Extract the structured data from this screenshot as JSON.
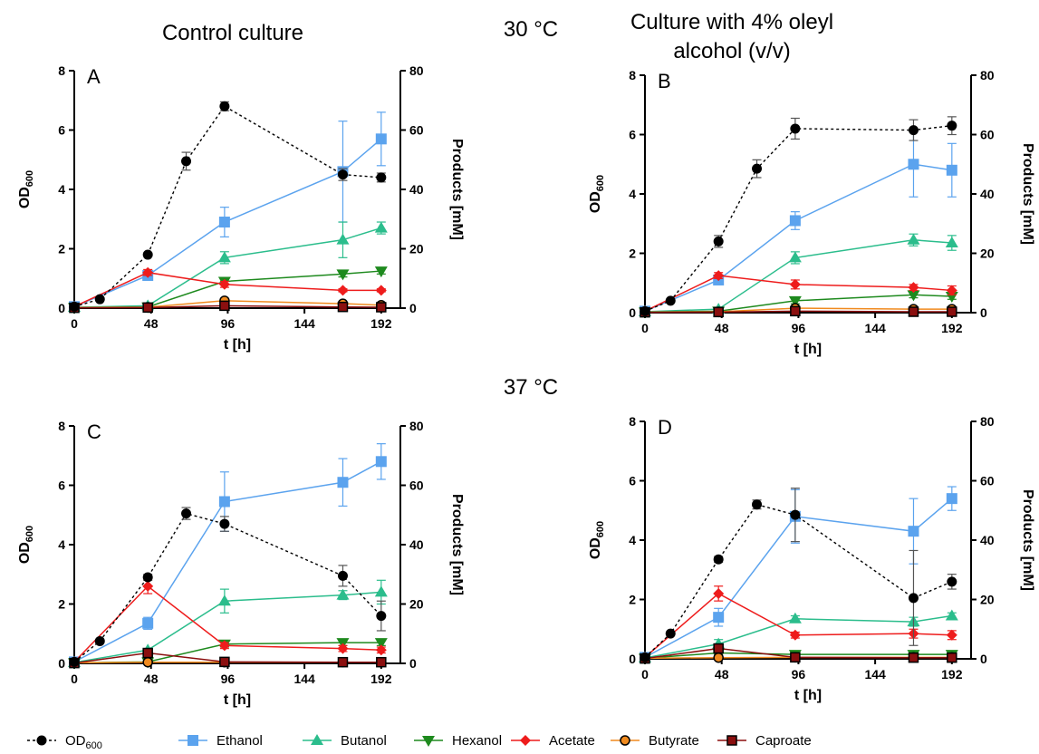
{
  "figure": {
    "col_left_title": "Control culture",
    "col_right_title_line1": "Culture with 4% oleyl",
    "col_right_title_line2": "alcohol (v/v)",
    "temp_top": "30 °C",
    "temp_bottom": "37 °C",
    "xlabel": "t [h]",
    "ylabel_left": "OD",
    "ylabel_left_sub": "600",
    "ylabel_right": "Products [mM]"
  },
  "legend": [
    {
      "label": "OD",
      "sub": "600",
      "color": "#000000",
      "marker": "circle",
      "dash": true
    },
    {
      "label": "Ethanol",
      "color": "#5ba3ee",
      "marker": "square"
    },
    {
      "label": "Butanol",
      "color": "#2bbd8c",
      "marker": "triangle-up"
    },
    {
      "label": "Hexanol",
      "color": "#1e8a1e",
      "marker": "triangle-down"
    },
    {
      "label": "Acetate",
      "color": "#ee1c1c",
      "marker": "diamond"
    },
    {
      "label": "Butyrate",
      "color": "#f08a1e",
      "marker": "circle-outlined"
    },
    {
      "label": "Caproate",
      "color": "#8b0f0f",
      "marker": "square-outlined"
    }
  ],
  "chart_data": [
    {
      "panel": "A",
      "type": "line",
      "xticks": [
        "0",
        "48",
        "96",
        "144",
        "192"
      ],
      "xlim": [
        0,
        204
      ],
      "yticks_left": [
        "0",
        "2",
        "4",
        "6",
        "8"
      ],
      "ylim_left": [
        0,
        8
      ],
      "yticks_right": [
        "0",
        "20",
        "40",
        "60",
        "80"
      ],
      "ylim_right": [
        0,
        80
      ],
      "od600": {
        "x": [
          0,
          16,
          46,
          70,
          94,
          168,
          192
        ],
        "y": [
          0.05,
          0.3,
          1.8,
          4.95,
          6.8,
          4.5,
          4.4
        ],
        "err": [
          0,
          0,
          0.05,
          0.3,
          0.15,
          0.2,
          0.15
        ]
      },
      "series": [
        {
          "name": "Ethanol",
          "x": [
            0,
            46,
            94,
            168,
            192
          ],
          "y": [
            0.5,
            11,
            29,
            46,
            57
          ],
          "err": [
            0,
            1,
            5,
            17,
            9
          ]
        },
        {
          "name": "Butanol",
          "x": [
            0,
            46,
            94,
            168,
            192
          ],
          "y": [
            0.3,
            0.8,
            17,
            23,
            27
          ],
          "err": [
            0,
            0,
            2,
            6,
            2
          ]
        },
        {
          "name": "Hexanol",
          "x": [
            0,
            46,
            94,
            168,
            192
          ],
          "y": [
            0.2,
            0.4,
            9,
            11.5,
            12.5
          ],
          "err": [
            0,
            0,
            1,
            1,
            1
          ]
        },
        {
          "name": "Acetate",
          "x": [
            0,
            46,
            94,
            168,
            192
          ],
          "y": [
            0.5,
            12,
            8,
            6,
            6
          ],
          "err": [
            0,
            1,
            1,
            0.5,
            0.5
          ]
        },
        {
          "name": "Butyrate",
          "x": [
            0,
            46,
            94,
            168,
            192
          ],
          "y": [
            0.2,
            0.3,
            2.5,
            1.5,
            1.0
          ],
          "err": [
            0,
            0,
            0.3,
            0.2,
            0.2
          ]
        },
        {
          "name": "Caproate",
          "x": [
            0,
            46,
            94,
            168,
            192
          ],
          "y": [
            0.1,
            0.2,
            0.8,
            0.4,
            0.3
          ],
          "err": [
            0,
            0,
            0,
            0,
            0
          ]
        }
      ]
    },
    {
      "panel": "B",
      "type": "line",
      "xticks": [
        "0",
        "48",
        "96",
        "144",
        "192"
      ],
      "xlim": [
        0,
        204
      ],
      "yticks_left": [
        "0",
        "2",
        "4",
        "6",
        "8"
      ],
      "ylim_left": [
        0,
        8
      ],
      "yticks_right": [
        "0",
        "20",
        "40",
        "60",
        "80"
      ],
      "ylim_right": [
        0,
        80
      ],
      "od600": {
        "x": [
          0,
          16,
          46,
          70,
          94,
          168,
          192
        ],
        "y": [
          0.05,
          0.4,
          2.4,
          4.85,
          6.2,
          6.15,
          6.3
        ],
        "err": [
          0,
          0,
          0.2,
          0.3,
          0.35,
          0.35,
          0.3
        ]
      },
      "series": [
        {
          "name": "Ethanol",
          "x": [
            0,
            46,
            94,
            168,
            192
          ],
          "y": [
            0.5,
            11,
            31,
            50,
            48
          ],
          "err": [
            0,
            1,
            3,
            11,
            9
          ]
        },
        {
          "name": "Butanol",
          "x": [
            0,
            46,
            94,
            168,
            192
          ],
          "y": [
            0.3,
            1.2,
            18.5,
            24.5,
            23.5
          ],
          "err": [
            0,
            0,
            2,
            2,
            2.5
          ]
        },
        {
          "name": "Hexanol",
          "x": [
            0,
            46,
            94,
            168,
            192
          ],
          "y": [
            0.2,
            0.5,
            4,
            6,
            5.5
          ],
          "err": [
            0,
            0,
            1,
            1,
            1
          ]
        },
        {
          "name": "Acetate",
          "x": [
            0,
            46,
            94,
            168,
            192
          ],
          "y": [
            0.5,
            12.5,
            9.5,
            8.5,
            7.5
          ],
          "err": [
            0,
            1,
            1.5,
            1,
            1.5
          ]
        },
        {
          "name": "Butyrate",
          "x": [
            0,
            46,
            94,
            168,
            192
          ],
          "y": [
            0.2,
            0.3,
            1.5,
            1.2,
            1.2
          ],
          "err": [
            0,
            0,
            0.2,
            0.2,
            0.2
          ]
        },
        {
          "name": "Caproate",
          "x": [
            0,
            46,
            94,
            168,
            192
          ],
          "y": [
            0.1,
            0.2,
            0.5,
            0.3,
            0.3
          ],
          "err": [
            0,
            0,
            0,
            0,
            0
          ]
        }
      ]
    },
    {
      "panel": "C",
      "type": "line",
      "xticks": [
        "0",
        "48",
        "96",
        "144",
        "192"
      ],
      "xlim": [
        0,
        204
      ],
      "yticks_left": [
        "0",
        "2",
        "4",
        "6",
        "8"
      ],
      "ylim_left": [
        0,
        8
      ],
      "yticks_right": [
        "0",
        "20",
        "40",
        "60",
        "80"
      ],
      "ylim_right": [
        0,
        80
      ],
      "od600": {
        "x": [
          0,
          16,
          46,
          70,
          94,
          168,
          192
        ],
        "y": [
          0.05,
          0.75,
          2.9,
          5.05,
          4.7,
          2.95,
          1.6
        ],
        "err": [
          0,
          0,
          0.1,
          0.2,
          0.25,
          0.35,
          0.5
        ]
      },
      "series": [
        {
          "name": "Ethanol",
          "x": [
            0,
            46,
            94,
            168,
            192
          ],
          "y": [
            0.5,
            13.5,
            54.5,
            61,
            68
          ],
          "err": [
            0,
            2,
            10,
            8,
            6
          ]
        },
        {
          "name": "Butanol",
          "x": [
            0,
            46,
            94,
            168,
            192
          ],
          "y": [
            0.3,
            4.5,
            21,
            23,
            24
          ],
          "err": [
            0,
            0.5,
            4,
            1.5,
            4
          ]
        },
        {
          "name": "Hexanol",
          "x": [
            0,
            46,
            94,
            168,
            192
          ],
          "y": [
            0.2,
            0.5,
            6.5,
            7,
            7
          ],
          "err": [
            0,
            0,
            1,
            1,
            1
          ]
        },
        {
          "name": "Acetate",
          "x": [
            0,
            46,
            94,
            168,
            192
          ],
          "y": [
            0.5,
            26,
            6,
            5,
            4.5
          ],
          "err": [
            0,
            2.5,
            1,
            1,
            1
          ]
        },
        {
          "name": "Butyrate",
          "x": [
            0,
            46,
            94,
            168,
            192
          ],
          "y": [
            0.2,
            0.4,
            0.4,
            0.4,
            0.4
          ],
          "err": [
            0,
            0,
            0,
            0,
            0
          ]
        },
        {
          "name": "Caproate",
          "x": [
            0,
            46,
            94,
            168,
            192
          ],
          "y": [
            0.1,
            3.5,
            0.5,
            0.4,
            0.4
          ],
          "err": [
            0,
            0.5,
            0,
            0,
            0
          ]
        }
      ]
    },
    {
      "panel": "D",
      "type": "line",
      "xticks": [
        "0",
        "48",
        "96",
        "144",
        "192"
      ],
      "xlim": [
        0,
        204
      ],
      "yticks_left": [
        "0",
        "2",
        "4",
        "6",
        "8"
      ],
      "ylim_left": [
        0,
        8
      ],
      "yticks_right": [
        "0",
        "20",
        "40",
        "60",
        "80"
      ],
      "ylim_right": [
        0,
        80
      ],
      "od600": {
        "x": [
          0,
          16,
          46,
          70,
          94,
          168,
          192
        ],
        "y": [
          0.05,
          0.85,
          3.35,
          5.2,
          4.85,
          2.05,
          2.6
        ],
        "err": [
          0,
          0,
          0.1,
          0.15,
          0.9,
          1.6,
          0.25
        ]
      },
      "series": [
        {
          "name": "Ethanol",
          "x": [
            0,
            46,
            94,
            168,
            192
          ],
          "y": [
            0.5,
            14,
            48,
            43,
            54
          ],
          "err": [
            0,
            3,
            9,
            11,
            4
          ]
        },
        {
          "name": "Butanol",
          "x": [
            0,
            46,
            94,
            168,
            192
          ],
          "y": [
            0.3,
            5,
            13.5,
            12.5,
            14.5
          ],
          "err": [
            0,
            1.5,
            1,
            1.5,
            1
          ]
        },
        {
          "name": "Hexanol",
          "x": [
            0,
            46,
            94,
            168,
            192
          ],
          "y": [
            0.2,
            2,
            1.5,
            1.5,
            1.5
          ],
          "err": [
            0,
            0.5,
            0.5,
            0.5,
            0.5
          ]
        },
        {
          "name": "Acetate",
          "x": [
            0,
            46,
            94,
            168,
            192
          ],
          "y": [
            0.5,
            22,
            8,
            8.5,
            8
          ],
          "err": [
            0,
            2.5,
            1,
            1.5,
            1.5
          ]
        },
        {
          "name": "Butyrate",
          "x": [
            0,
            46,
            94,
            168,
            192
          ],
          "y": [
            0.2,
            0.4,
            0.5,
            0.5,
            0.5
          ],
          "err": [
            0,
            0,
            0,
            0,
            0
          ]
        },
        {
          "name": "Caproate",
          "x": [
            0,
            46,
            94,
            168,
            192
          ],
          "y": [
            0.1,
            3.5,
            0.5,
            0.4,
            0.4
          ],
          "err": [
            0,
            0.5,
            0,
            0,
            0
          ]
        }
      ]
    }
  ]
}
